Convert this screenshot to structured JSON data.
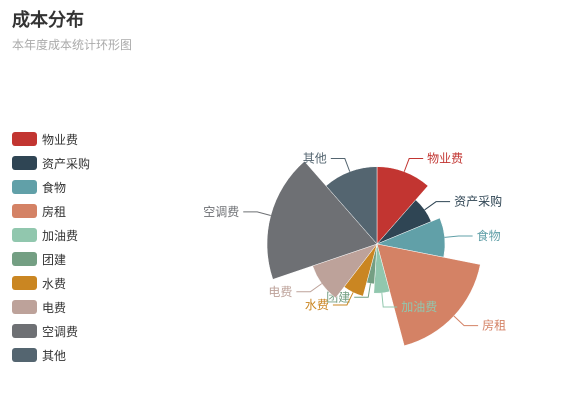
{
  "chart_data": {
    "type": "pie",
    "title": "成本分布",
    "subtitle": "本年度成本统计环形图",
    "legend_position": "left",
    "slices": [
      {
        "name": "物业费",
        "value": 11,
        "color": "#c23531"
      },
      {
        "name": "资产采购",
        "value": 7,
        "color": "#2f4554"
      },
      {
        "name": "食物",
        "value": 9,
        "color": "#61a0a8"
      },
      {
        "name": "房租",
        "value": 17,
        "color": "#d48265"
      },
      {
        "name": "加油费",
        "value": 5,
        "color": "#91c7ae"
      },
      {
        "name": "团建",
        "value": 3,
        "color": "#749f83"
      },
      {
        "name": "水费",
        "value": 6,
        "color": "#ca8622"
      },
      {
        "name": "电费",
        "value": 9,
        "color": "#bda29a"
      },
      {
        "name": "空调费",
        "value": 18,
        "color": "#6e7074"
      },
      {
        "name": "其他",
        "value": 11,
        "color": "#546570"
      }
    ]
  }
}
